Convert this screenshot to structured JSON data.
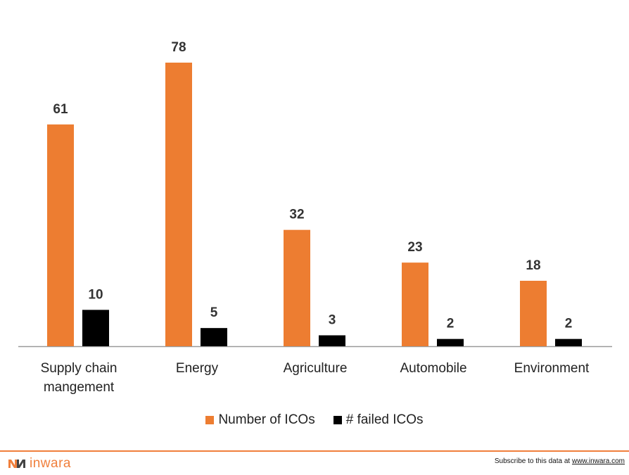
{
  "chart_data": {
    "type": "bar",
    "categories": [
      "Supply chain mangement",
      "Energy",
      "Agriculture",
      "Automobile",
      "Environment"
    ],
    "category_lines": [
      [
        "Supply chain",
        "mangement"
      ],
      [
        "Energy"
      ],
      [
        "Agriculture"
      ],
      [
        "Automobile"
      ],
      [
        "Environment"
      ]
    ],
    "series": [
      {
        "name": "Number of ICOs",
        "values": [
          61,
          78,
          32,
          23,
          18
        ],
        "color": "#ed7d31"
      },
      {
        "name": "# failed ICOs",
        "values": [
          10,
          5,
          3,
          2,
          2
        ],
        "color": "#000000"
      }
    ],
    "ylim": [
      0,
      80
    ],
    "grid": false,
    "legend_position": "bottom"
  },
  "footer": {
    "brand": "inwara",
    "subscribe_text": "Subscribe to this data at ",
    "subscribe_link": "www.inwara.com"
  },
  "colors": {
    "accent": "#f07f3c",
    "axis": "#999999"
  }
}
